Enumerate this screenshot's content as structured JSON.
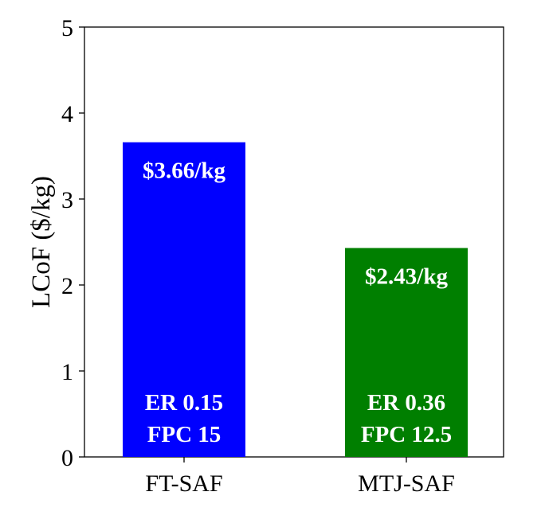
{
  "chart_data": {
    "type": "bar",
    "categories": [
      "FT-SAF",
      "MTJ-SAF"
    ],
    "values": [
      3.66,
      2.43
    ],
    "colors": [
      "#0000ff",
      "#007f00"
    ],
    "title": "",
    "xlabel": "",
    "ylabel": "LCoF ($/kg)",
    "ylim": [
      0,
      5
    ],
    "yticks": [
      "0",
      "1",
      "2",
      "3",
      "4",
      "5"
    ],
    "grid": false,
    "value_labels": [
      "$3.66/kg",
      "$2.43/kg"
    ],
    "annotations": [
      [
        "ER 0.15",
        "FPC 15"
      ],
      [
        "ER 0.36",
        "FPC 12.5"
      ]
    ]
  }
}
